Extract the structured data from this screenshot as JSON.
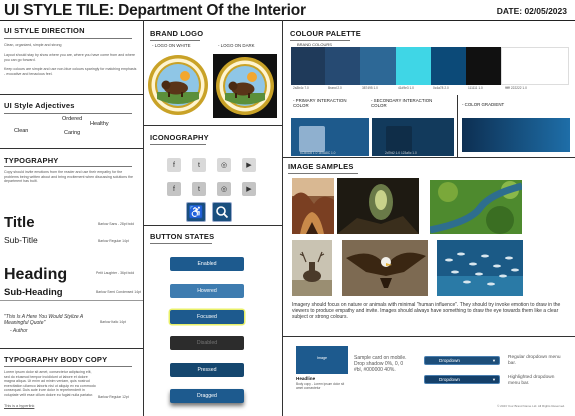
{
  "header": {
    "title": "UI STYLE TILE: Department Of the Interior",
    "date": "DATE: 02/05/2023"
  },
  "direction": {
    "heading": "UI STYLE DIRECTION",
    "lead": "Clean, organized, simple and strong",
    "para1": "Layout should stay by show where you are, where you have come from and where you can go forward.",
    "para2": "Keep colours are simple and use non-blue colours sparingly for matching emphasis - evocative and tenacious feel."
  },
  "adjectives": {
    "heading": "UI Style Adjectives",
    "words": [
      "Ordered",
      "Healthy",
      "Clean",
      "Caring"
    ]
  },
  "typography": {
    "heading": "TYPOGRAPHY",
    "para": "Copy should invite emotions from the reader and use their empathy for the problems being written about and bring excitement when discussing solutions the department has built.",
    "title": "Title",
    "title_spec": "Barlow Sans - 28pt bold",
    "subtitle": "Sub-Title",
    "subtitle_spec": "Barlow Regular 14pt",
    "heading_sample": "Heading",
    "heading_spec": "Petit Laughter - 36pt bold",
    "subheading": "Sub-Heading",
    "subheading_spec": "Barlow Semi Condensed 14pt",
    "quote": "\"This Is A Here You Would Stylize A Meaningful Quote\"",
    "quote_author": "- Author",
    "quote_spec": "Barlow Italic 14pt"
  },
  "body_copy": {
    "heading": "TYPOGRAPHY BODY COPY",
    "para": "Lorem ipsum dolor sit amet, consectetur adipiscing elit, sed do eiusmod tempor incididunt ut labore et dolore magna aliqua. Ut enim ad minim veniam, quis nostrud exercitation ullamco laboris nisi ut aliquip ex ea commodo consequat. Duis aute irure dolor in reprehenderit in voluptate velit esse cillum dolore eu fugiat nulla pariatur.",
    "spec": "Barlow Regular 12pt",
    "link": "This is a hyperlink"
  },
  "brand": {
    "heading": "BRAND LOGO",
    "on_white": "- LOGO ON WHITE",
    "on_dark": "- LOGO ON DARK",
    "seal_text": "U.S. DEPARTMENT OF THE INTERIOR",
    "seal_date": "MARCH 3, 1849"
  },
  "iconography": {
    "heading": "ICONOGRAPHY"
  },
  "buttons": {
    "heading": "BUTTON STATES",
    "states": [
      "Enabled",
      "Hovered",
      "Focused",
      "Disabled",
      "Pressed",
      "Dragged"
    ]
  },
  "palette": {
    "heading": "COLOUR PALETTE",
    "brand_label": "BRAND COLOURS",
    "brand": [
      {
        "hex": "#1f3a5a",
        "label": "2a3b4c 7.0"
      },
      {
        "hex": "#264a72",
        "label": "Brand 2.0"
      },
      {
        "hex": "#2d6896",
        "label": "387495 1.0"
      },
      {
        "hex": "#3fd6e6",
        "label": "41d9e3 1.0"
      },
      {
        "hex": "#0c4a78",
        "label": "0c4a78 2.0"
      },
      {
        "hex": "#111111",
        "label": "111111 1.0"
      },
      {
        "hex": "#ffffff",
        "label": "ffffff 222222 1.0"
      }
    ],
    "primary_label": "- PRIMARY INTERACTION COLOR",
    "secondary_label": "- SECONDARY INTERACTION COLOR",
    "gradient_label": "- COLOR GRADIENT",
    "primary": "#1e5a8c",
    "primary_hi": "#8fb0cf",
    "secondary": "#123a5c",
    "secondary_hi": "#0f2d48",
    "gradient_from": "#0d2f52",
    "gradient_to": "#1e6ea8",
    "primary_codes": "6CB0D8 1.0  1E5A8C 1.0",
    "secondary_codes": "2d7fd2 1.0  123a5c 1.0"
  },
  "images": {
    "heading": "IMAGE SAMPLES",
    "caption": "Imagery should focus on nature or animals with minimal \"human influence\". They should try invoke emotion to draw in the viewers to produce empathy and invite. Images should always have something to draw the eye towards them like a clear subject or strong colours."
  },
  "card": {
    "image_label": "Image",
    "headline": "Headline",
    "body": "Body copy - Lorem ipsum dolor sit amet consectetur",
    "caption": "Sample card on mobile. Drop shadow 0%, 0, 0 #bl, #000000 40%.",
    "dropdown": "Dropdown",
    "regular_label": "Regular dropdown menu bar.",
    "highlight_label": "Highlighted dropdown menu bar."
  },
  "footer": {
    "copyright": "© 2023 Your Brand Name Ltd. All Rights Reserved."
  }
}
